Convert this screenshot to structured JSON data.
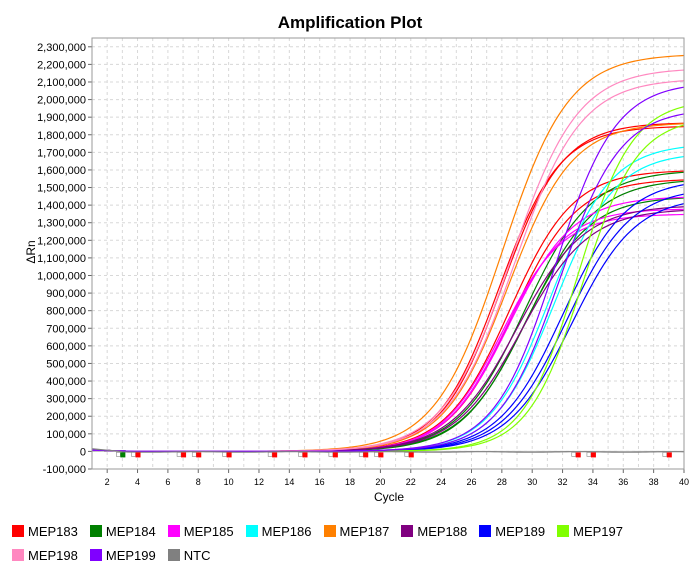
{
  "chart_data": {
    "type": "line",
    "title": "Amplification Plot",
    "xlabel": "Cycle",
    "ylabel": "ΔRn",
    "xlim": [
      1,
      40
    ],
    "ylim": [
      -100000,
      2350000
    ],
    "x_ticks": [
      2,
      4,
      6,
      8,
      10,
      12,
      14,
      16,
      18,
      20,
      22,
      24,
      26,
      28,
      30,
      32,
      34,
      36,
      38,
      40
    ],
    "x_tick_labels": [
      "2",
      "4",
      "6",
      "8",
      "10",
      "12",
      "14",
      "16",
      "18",
      "20",
      "22",
      "24",
      "26",
      "28",
      "30",
      "32",
      "34",
      "36",
      "38",
      "40"
    ],
    "y_ticks": [
      -100000,
      0,
      100000,
      200000,
      300000,
      400000,
      500000,
      600000,
      700000,
      800000,
      900000,
      1000000,
      1100000,
      1200000,
      1300000,
      1400000,
      1500000,
      1600000,
      1700000,
      1800000,
      1900000,
      2000000,
      2100000,
      2200000,
      2300000
    ],
    "y_tick_labels": [
      "-100,000",
      "0",
      "100,000",
      "200,000",
      "300,000",
      "400,000",
      "500,000",
      "600,000",
      "700,000",
      "800,000",
      "900,000",
      "1,000,000",
      "1,100,000",
      "1,200,000",
      "1,300,000",
      "1,400,000",
      "1,500,000",
      "1,600,000",
      "1,700,000",
      "1,800,000",
      "1,900,000",
      "2,000,000",
      "2,100,000",
      "2,200,000",
      "2,300,000"
    ],
    "grid": true,
    "legend_position": "bottom",
    "series": [
      {
        "name": "MEP183",
        "color": "#ff0000",
        "curves": [
          {
            "max": 1870000,
            "midpoint": 28.0,
            "slope": 2.0
          },
          {
            "max": 1850000,
            "midpoint": 27.8,
            "slope": 2.0
          },
          {
            "max": 1600000,
            "midpoint": 28.5,
            "slope": 2.1
          },
          {
            "max": 1550000,
            "midpoint": 28.7,
            "slope": 2.1
          }
        ],
        "baseline_markers": [
          4,
          7,
          8,
          10,
          13,
          15,
          17,
          19,
          20,
          22,
          33,
          34,
          39
        ]
      },
      {
        "name": "MEP184",
        "color": "#008000",
        "curves": [
          {
            "max": 1600000,
            "midpoint": 29.5,
            "slope": 2.2
          },
          {
            "max": 1550000,
            "midpoint": 29.8,
            "slope": 2.2
          },
          {
            "max": 1450000,
            "midpoint": 29.5,
            "slope": 2.1
          }
        ],
        "baseline_markers": [
          3
        ]
      },
      {
        "name": "MEP185",
        "color": "#ff00ff",
        "curves": [
          {
            "max": 1450000,
            "midpoint": 28.5,
            "slope": 2.1
          },
          {
            "max": 1380000,
            "midpoint": 28.2,
            "slope": 2.0
          },
          {
            "max": 1350000,
            "midpoint": 28.0,
            "slope": 2.0
          }
        ],
        "baseline_markers": []
      },
      {
        "name": "MEP186",
        "color": "#00ffff",
        "curves": [
          {
            "max": 1750000,
            "midpoint": 31.2,
            "slope": 2.0
          },
          {
            "max": 1700000,
            "midpoint": 31.5,
            "slope": 2.0
          }
        ],
        "baseline_markers": []
      },
      {
        "name": "MEP187",
        "color": "#ff8000",
        "curves": [
          {
            "max": 2260000,
            "midpoint": 28.0,
            "slope": 2.2
          },
          {
            "max": 1870000,
            "midpoint": 28.4,
            "slope": 2.1
          }
        ],
        "baseline_markers": []
      },
      {
        "name": "MEP188",
        "color": "#800080",
        "curves": [
          {
            "max": 1400000,
            "midpoint": 29.0,
            "slope": 2.2
          },
          {
            "max": 1380000,
            "midpoint": 29.3,
            "slope": 2.2
          }
        ],
        "baseline_markers": []
      },
      {
        "name": "MEP189",
        "color": "#0000ff",
        "curves": [
          {
            "max": 1550000,
            "midpoint": 32.0,
            "slope": 2.1
          },
          {
            "max": 1500000,
            "midpoint": 32.3,
            "slope": 2.1
          },
          {
            "max": 1450000,
            "midpoint": 32.6,
            "slope": 2.1
          }
        ],
        "baseline_markers": []
      },
      {
        "name": "MEP197",
        "color": "#80ff00",
        "curves": [
          {
            "max": 2000000,
            "midpoint": 33.0,
            "slope": 1.8
          },
          {
            "max": 1900000,
            "midpoint": 33.3,
            "slope": 1.8
          }
        ],
        "baseline_markers": []
      },
      {
        "name": "MEP198",
        "color": "#ff88c0",
        "curves": [
          {
            "max": 2180000,
            "midpoint": 28.6,
            "slope": 2.2
          },
          {
            "max": 2120000,
            "midpoint": 28.8,
            "slope": 2.2
          }
        ],
        "baseline_markers": []
      },
      {
        "name": "MEP199",
        "color": "#8000ff",
        "curves": [
          {
            "max": 2100000,
            "midpoint": 31.5,
            "slope": 2.0
          },
          {
            "max": 1950000,
            "midpoint": 31.8,
            "slope": 2.0
          }
        ],
        "baseline_markers": []
      },
      {
        "name": "NTC",
        "color": "#808080",
        "curves": [
          {
            "max": 0,
            "midpoint": 0,
            "slope": 1.0
          }
        ],
        "baseline_markers": []
      }
    ]
  }
}
